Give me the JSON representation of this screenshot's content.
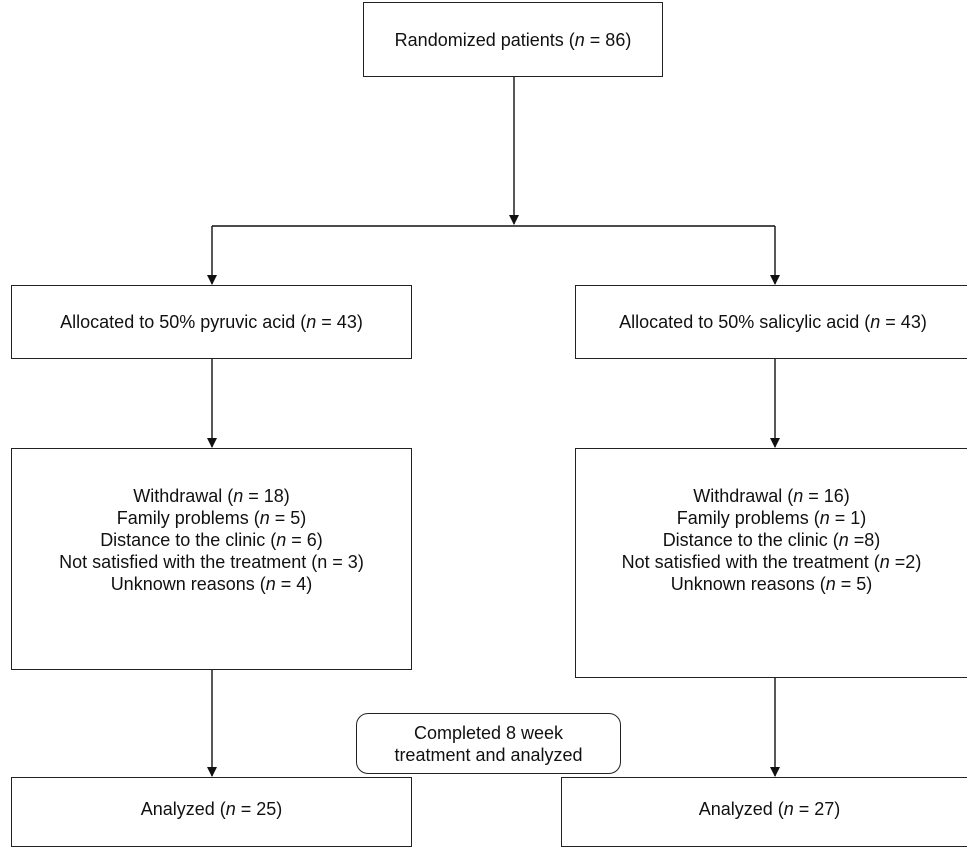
{
  "randomized": {
    "pre": "Randomized patients (",
    "n": "n",
    "post": " = 86)"
  },
  "arm_left": {
    "allocated": {
      "pre": "Allocated to 50% pyruvic acid (",
      "n": "n",
      "post": " = 43)"
    },
    "withdrawal_lines": [
      {
        "pre": "Withdrawal (",
        "n": "n",
        "post": " = 18)"
      },
      {
        "pre": "Family problems (",
        "n": "n",
        "post": " = 5)"
      },
      {
        "pre": "Distance to the clinic (",
        "n": "n",
        "post": " = 6)"
      },
      {
        "pre": "Not satisfied with the treatment (n = 3)",
        "n": "",
        "post": ""
      },
      {
        "pre": "Unknown reasons (",
        "n": "n",
        "post": " = 4)"
      }
    ],
    "analyzed": {
      "pre": "Analyzed (",
      "n": "n",
      "post": " = 25)"
    }
  },
  "arm_right": {
    "allocated": {
      "pre": "Allocated to 50% salicylic acid (",
      "n": "n",
      "post": " = 43)"
    },
    "withdrawal_lines": [
      {
        "pre": "Withdrawal (",
        "n": "n",
        "post": " = 16)"
      },
      {
        "pre": "Family problems (",
        "n": "n",
        "post": " = 1)"
      },
      {
        "pre": "Distance to the clinic (",
        "n": "n",
        "post": " =8)"
      },
      {
        "pre": "Not satisfied with the treatment (",
        "n": "n",
        "post": " =2)"
      },
      {
        "pre": "Unknown reasons (",
        "n": "n",
        "post": " = 5)"
      }
    ],
    "analyzed": {
      "pre": "Analyzed (",
      "n": "n",
      "post": " = 27)"
    }
  },
  "completed_label": {
    "line1": "Completed 8 week",
    "line2": "treatment and analyzed"
  }
}
